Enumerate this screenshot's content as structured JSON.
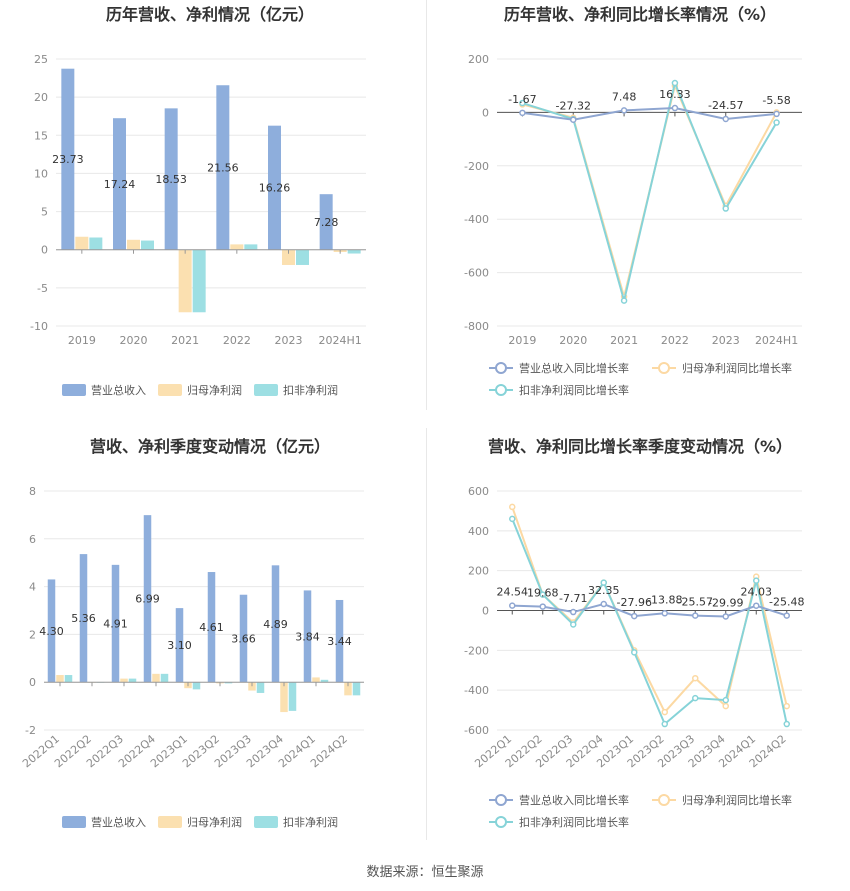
{
  "source": "数据来源：恒生聚源",
  "colors": {
    "revenue": "#8eaedc",
    "net_profit": "#fbe0b0",
    "deducted_profit": "#9ddfe3",
    "revenue_line": "#8fa6d1",
    "net_line": "#fcd9a3",
    "deducted_line": "#86d3d8",
    "grid": "#e8e8e8"
  },
  "chart_data": [
    {
      "type": "bar",
      "title": "历年营收、净利情况（亿元）",
      "categories": [
        "2019",
        "2020",
        "2021",
        "2022",
        "2023",
        "2024H1"
      ],
      "ylim": [
        -10,
        25
      ],
      "yticks": [
        "25",
        "20",
        "15",
        "10",
        "5",
        "0",
        "-5",
        "-10"
      ],
      "series": [
        {
          "name": "营业总收入",
          "values": [
            23.73,
            17.24,
            18.53,
            21.56,
            16.26,
            7.28
          ]
        },
        {
          "name": "归母净利润",
          "values": [
            1.7,
            1.3,
            -8.2,
            0.7,
            -2.0,
            -0.3
          ]
        },
        {
          "name": "扣非净利润",
          "values": [
            1.6,
            1.2,
            -8.2,
            0.7,
            -2.0,
            -0.5
          ]
        }
      ],
      "data_labels": [
        "23.73",
        "17.24",
        "18.53",
        "21.56",
        "16.26",
        "7.28"
      ],
      "legend": "bottom"
    },
    {
      "type": "line",
      "title": "历年营收、净利同比增长率情况（%）",
      "categories": [
        "2019",
        "2020",
        "2021",
        "2022",
        "2023",
        "2024H1"
      ],
      "ylim": [
        -800,
        200
      ],
      "yticks": [
        "200",
        "0",
        "-200",
        "-400",
        "-600",
        "-800"
      ],
      "series": [
        {
          "name": "营业总收入同比增长率",
          "values": [
            -1.67,
            -27.32,
            7.48,
            16.33,
            -24.57,
            -5.58
          ]
        },
        {
          "name": "归母净利润同比增长率",
          "values": [
            30,
            -20,
            -690,
            100,
            -350,
            0
          ]
        },
        {
          "name": "扣非净利润同比增长率",
          "values": [
            35,
            -25,
            -705,
            110,
            -360,
            -38
          ]
        }
      ],
      "data_labels": [
        "-1.67",
        "-27.32",
        "7.48",
        "16.33",
        "-24.57",
        "-5.58"
      ],
      "legend": "bottom"
    },
    {
      "type": "bar",
      "title": "营收、净利季度变动情况（亿元）",
      "categories": [
        "2022Q1",
        "2022Q2",
        "2022Q3",
        "2022Q4",
        "2023Q1",
        "2023Q2",
        "2023Q3",
        "2023Q4",
        "2024Q1",
        "2024Q2"
      ],
      "ylim": [
        -2,
        8
      ],
      "yticks": [
        "8",
        "6",
        "4",
        "2",
        "0",
        "-2"
      ],
      "series": [
        {
          "name": "营业总收入",
          "values": [
            4.3,
            5.36,
            4.91,
            6.99,
            3.1,
            4.61,
            3.66,
            4.89,
            3.84,
            3.44
          ]
        },
        {
          "name": "归母净利润",
          "values": [
            0.3,
            0.0,
            0.15,
            0.35,
            -0.25,
            -0.05,
            -0.35,
            -1.25,
            0.2,
            -0.55
          ]
        },
        {
          "name": "扣非净利润",
          "values": [
            0.3,
            0.0,
            0.15,
            0.35,
            -0.3,
            -0.05,
            -0.45,
            -1.2,
            0.1,
            -0.55
          ]
        }
      ],
      "data_labels": [
        "4.30",
        "5.36",
        "4.91",
        "6.99",
        "3.10",
        "4.61",
        "3.66",
        "4.89",
        "3.84",
        "3.44"
      ],
      "legend": "bottom"
    },
    {
      "type": "line",
      "title": "营收、净利同比增长率季度变动情况（%）",
      "categories": [
        "2022Q1",
        "2022Q2",
        "2022Q3",
        "2022Q4",
        "2023Q1",
        "2023Q2",
        "2023Q3",
        "2023Q4",
        "2024Q1",
        "2024Q2"
      ],
      "ylim": [
        -600,
        600
      ],
      "yticks": [
        "600",
        "400",
        "200",
        "0",
        "-200",
        "-400",
        "-600"
      ],
      "series": [
        {
          "name": "营业总收入同比增长率",
          "values": [
            24.54,
            19.68,
            -7.71,
            32.35,
            -27.96,
            -13.88,
            -25.57,
            -29.99,
            24.03,
            -25.48
          ]
        },
        {
          "name": "归母净利润同比增长率",
          "values": [
            520,
            80,
            -60,
            140,
            -200,
            -510,
            -340,
            -480,
            170,
            -480
          ]
        },
        {
          "name": "扣非净利润同比增长率",
          "values": [
            460,
            80,
            -70,
            140,
            -210,
            -570,
            -440,
            -450,
            150,
            -570
          ]
        }
      ],
      "data_labels": [
        "24.54",
        "19.68",
        "-7.71",
        "32.35",
        "-27.96",
        "-13.88",
        "-25.57",
        "-29.99",
        "24.03",
        "-25.48"
      ],
      "legend": "bottom"
    }
  ]
}
